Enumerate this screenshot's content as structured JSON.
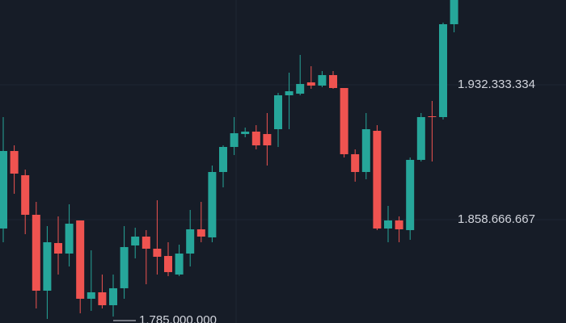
{
  "chart_data": {
    "type": "candlestick",
    "open": [
      1853820000,
      1896160000,
      1882930000,
      1861320000,
      1819850000,
      1845880000,
      1840140000,
      1858230000,
      1815440000,
      1818970000,
      1811910000,
      1821180000,
      1844560000,
      1849410000,
      1842790000,
      1838820000,
      1828680000,
      1840140000,
      1853380000,
      1848970000,
      1884690000,
      1898370000,
      1905430000,
      1906750000,
      1905430000,
      1908070000,
      1926600000,
      1927480000,
      1933660000,
      1931890000,
      1937630000,
      1930570000,
      1894400000,
      1884690000,
      1907190000,
      1853820000,
      1858230000,
      1852940000,
      1891310000,
      1915130000,
      1914690000,
      1965420000
    ],
    "high": [
      1914690000,
      1899250000,
      1886020000,
      1868370000,
      1855140000,
      1860430000,
      1867050000,
      1858230000,
      1841910000,
      1828680000,
      1828680000,
      1855140000,
      1854260000,
      1852940000,
      1869260000,
      1846320000,
      1845000000,
      1863960000,
      1868370000,
      1888220000,
      1899250000,
      1914690000,
      1908960000,
      1910280000,
      1916900000,
      1927920000,
      1938950000,
      1948660000,
      1942480000,
      1939830000,
      1939830000,
      1930570000,
      1897050000,
      1916900000,
      1910280000,
      1866170000,
      1860430000,
      1892630000,
      1916900000,
      1923510000,
      1966300000,
      1978650000
    ],
    "low": [
      1846320000,
      1872790000,
      1850730000,
      1810150000,
      1804420000,
      1828680000,
      1833090000,
      1807500000,
      1808830000,
      1810150000,
      1805740000,
      1815440000,
      1837500000,
      1823380000,
      1828680000,
      1827790000,
      1827790000,
      1833090000,
      1846320000,
      1846320000,
      1876310000,
      1893960000,
      1903660000,
      1897050000,
      1888220000,
      1898370000,
      1908070000,
      1926600000,
      1930130000,
      1931010000,
      1930130000,
      1892630000,
      1879400000,
      1880720000,
      1852940000,
      1846320000,
      1846320000,
      1847640000,
      1890430000,
      1890430000,
      1913370000,
      1961010000
    ],
    "close": [
      1896160000,
      1883810000,
      1861320000,
      1819850000,
      1846320000,
      1840140000,
      1856460000,
      1815440000,
      1818970000,
      1811910000,
      1821180000,
      1843680000,
      1849410000,
      1842790000,
      1838380000,
      1830000000,
      1840140000,
      1853380000,
      1849410000,
      1884690000,
      1898370000,
      1905870000,
      1906750000,
      1899250000,
      1899250000,
      1926600000,
      1928810000,
      1932770000,
      1931890000,
      1937630000,
      1930570000,
      1894400000,
      1884690000,
      1908070000,
      1853820000,
      1858230000,
      1853380000,
      1891310000,
      1914690000,
      1914690000,
      1965420000,
      1978650000
    ],
    "up_color": "#26a69a",
    "down_color": "#ef5350",
    "ylim": [
      1802200000,
      1978650000
    ],
    "yticks": [
      {
        "value": 1932333334,
        "label": "1.932.333.334"
      },
      {
        "value": 1858666667,
        "label": "1.858.666.667"
      }
    ],
    "grid": true,
    "annotation": "1.785.000.000"
  }
}
